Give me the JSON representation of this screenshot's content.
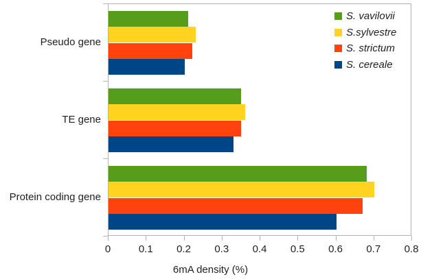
{
  "chart_data": {
    "type": "bar",
    "orientation": "horizontal",
    "title": "",
    "xlabel": "6mA density (%)",
    "ylabel": "",
    "categories": [
      "Pseudo gene",
      "TE gene",
      "Protein coding gene"
    ],
    "series": [
      {
        "name": "S. vavilovii",
        "color": "#579D1C",
        "values": [
          0.21,
          0.35,
          0.68
        ]
      },
      {
        "name": "S.sylvestre",
        "color": "#FFD320",
        "values": [
          0.23,
          0.36,
          0.7
        ]
      },
      {
        "name": "S. strictum",
        "color": "#FF420E",
        "values": [
          0.22,
          0.35,
          0.67
        ]
      },
      {
        "name": "S. cereale",
        "color": "#004586",
        "values": [
          0.2,
          0.33,
          0.6
        ]
      }
    ],
    "xlim": [
      0,
      0.8
    ],
    "x_ticks": [
      "0",
      "0.1",
      "0.2",
      "0.3",
      "0.4",
      "0.5",
      "0.6",
      "0.7",
      "0.8"
    ],
    "grid": false,
    "legend_position": "top-right",
    "plot_border_color": "#b3b3b3",
    "text_color": "#1f1f1f",
    "background_color": "#ffffff"
  }
}
